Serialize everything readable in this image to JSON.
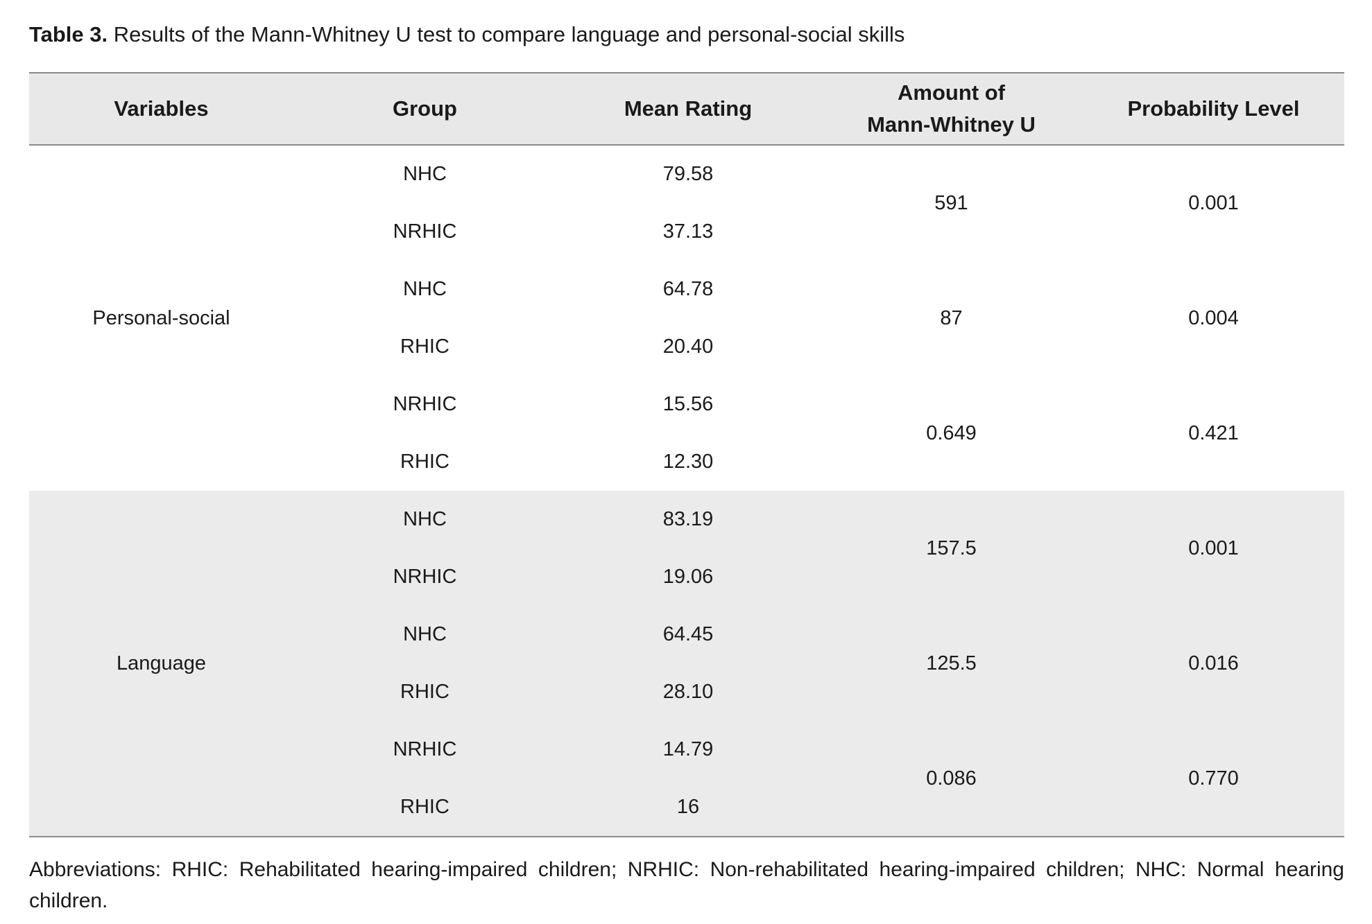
{
  "caption": {
    "label": "Table 3.",
    "text": " Results of the Mann-Whitney U test to compare language and personal-social skills"
  },
  "table": {
    "headers": {
      "variables": "Variables",
      "group": "Group",
      "mean_rating": "Mean Rating",
      "mann_whitney_line1": "Amount of",
      "mann_whitney_line2": "Mann-Whitney U",
      "probability": "Probability Level"
    },
    "sections": [
      {
        "variable": "Personal-social",
        "comparisons": [
          {
            "rows": [
              {
                "group": "NHC",
                "mean": "79.58"
              },
              {
                "group": "NRHIC",
                "mean": "37.13"
              }
            ],
            "u": "591",
            "p": "0.001"
          },
          {
            "rows": [
              {
                "group": "NHC",
                "mean": "64.78"
              },
              {
                "group": "RHIC",
                "mean": "20.40"
              }
            ],
            "u": "87",
            "p": "0.004"
          },
          {
            "rows": [
              {
                "group": "NRHIC",
                "mean": "15.56"
              },
              {
                "group": "RHIC",
                "mean": "12.30"
              }
            ],
            "u": "0.649",
            "p": "0.421"
          }
        ]
      },
      {
        "variable": "Language",
        "comparisons": [
          {
            "rows": [
              {
                "group": "NHC",
                "mean": "83.19"
              },
              {
                "group": "NRHIC",
                "mean": "19.06"
              }
            ],
            "u": "157.5",
            "p": "0.001"
          },
          {
            "rows": [
              {
                "group": "NHC",
                "mean": "64.45"
              },
              {
                "group": "RHIC",
                "mean": "28.10"
              }
            ],
            "u": "125.5",
            "p": "0.016"
          },
          {
            "rows": [
              {
                "group": "NRHIC",
                "mean": "14.79"
              },
              {
                "group": "RHIC",
                "mean": "16"
              }
            ],
            "u": "0.086",
            "p": "0.770"
          }
        ]
      }
    ]
  },
  "footnote": "Abbreviations: RHIC: Rehabilitated hearing-impaired children; NRHIC: Non-rehabilitated hearing-impaired children; NHC: Normal hearing children."
}
